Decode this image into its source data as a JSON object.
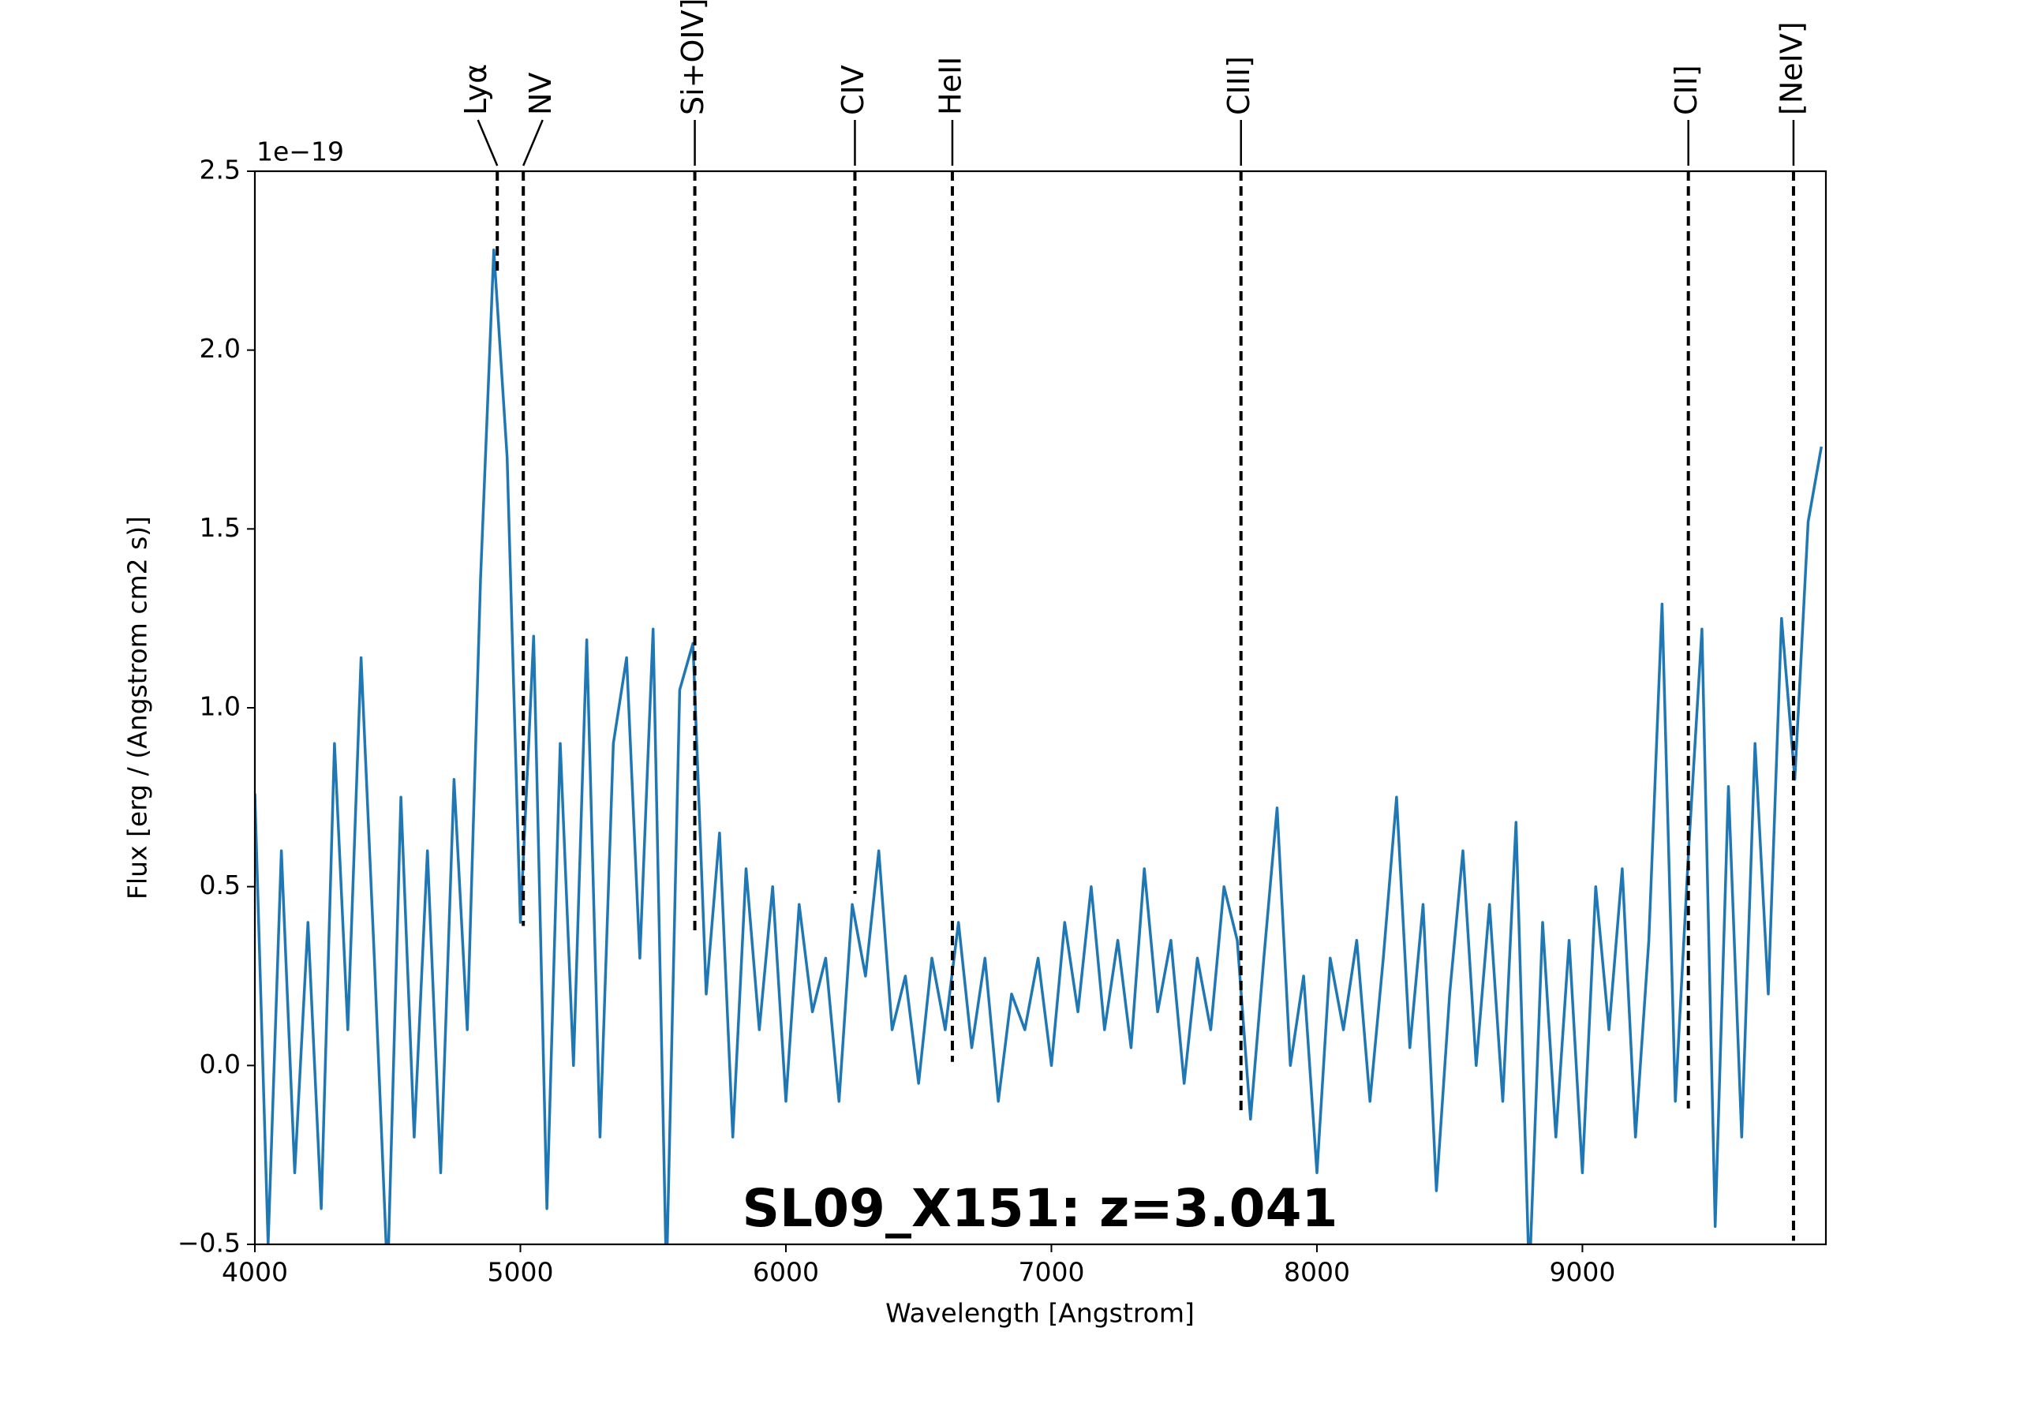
{
  "chart_data": {
    "type": "line",
    "title": "SL09_X151: z=3.041",
    "xlabel": "Wavelength [Angstrom]",
    "ylabel": "Flux [erg / (Angstrom cm2 s)]",
    "offset_text": "1e−19",
    "title_color": "#ff0000",
    "xlim": [
      4000,
      9917
    ],
    "ylim": [
      -0.5,
      2.5
    ],
    "xticks": [
      4000,
      5000,
      6000,
      7000,
      8000,
      9000
    ],
    "yticks": [
      {
        "value": -0.5,
        "label": "−0.5"
      },
      {
        "value": 0,
        "label": "0.0"
      },
      0.5,
      {
        "value": 1,
        "label": "1.0"
      },
      1.5,
      {
        "value": 2,
        "label": "2.0"
      },
      2.5
    ],
    "x": [
      4000,
      4050,
      4100,
      4150,
      4200,
      4250,
      4300,
      4350,
      4400,
      4450,
      4500,
      4550,
      4600,
      4650,
      4700,
      4750,
      4800,
      4850,
      4900,
      4950,
      5000,
      5050,
      5100,
      5150,
      5200,
      5250,
      5300,
      5350,
      5400,
      5450,
      5500,
      5550,
      5600,
      5650,
      5700,
      5750,
      5800,
      5850,
      5900,
      5950,
      6000,
      6050,
      6100,
      6150,
      6200,
      6250,
      6300,
      6350,
      6400,
      6450,
      6500,
      6550,
      6600,
      6650,
      6700,
      6750,
      6800,
      6850,
      6900,
      6950,
      7000,
      7050,
      7100,
      7150,
      7200,
      7250,
      7300,
      7350,
      7400,
      7450,
      7500,
      7550,
      7600,
      7650,
      7700,
      7750,
      7800,
      7850,
      7900,
      7950,
      8000,
      8050,
      8100,
      8150,
      8200,
      8250,
      8300,
      8350,
      8400,
      8450,
      8500,
      8550,
      8600,
      8650,
      8700,
      8750,
      8800,
      8850,
      8900,
      8950,
      9000,
      9050,
      9100,
      9150,
      9200,
      9250,
      9300,
      9350,
      9400,
      9450,
      9500,
      9550,
      9600,
      9650,
      9700,
      9750,
      9800,
      9850,
      9900
    ],
    "series": [
      {
        "color": "#1f77b4",
        "values": [
          0.76,
          -0.5,
          0.6,
          -0.3,
          0.4,
          -0.4,
          0.9,
          0.1,
          1.14,
          0.3,
          -0.6,
          0.75,
          -0.2,
          0.6,
          -0.3,
          0.8,
          0.1,
          1.36,
          2.28,
          1.7,
          0.4,
          1.2,
          -0.4,
          0.9,
          0.0,
          1.19,
          -0.2,
          0.9,
          1.14,
          0.3,
          1.22,
          -0.6,
          1.05,
          1.18,
          0.2,
          0.65,
          -0.2,
          0.55,
          0.1,
          0.5,
          -0.1,
          0.45,
          0.15,
          0.3,
          -0.1,
          0.45,
          0.25,
          0.6,
          0.1,
          0.25,
          -0.05,
          0.3,
          0.1,
          0.4,
          0.05,
          0.3,
          -0.1,
          0.2,
          0.1,
          0.3,
          0.0,
          0.4,
          0.15,
          0.5,
          0.1,
          0.35,
          0.05,
          0.55,
          0.15,
          0.35,
          -0.05,
          0.3,
          0.1,
          0.5,
          0.35,
          -0.15,
          0.3,
          0.72,
          0.0,
          0.25,
          -0.3,
          0.3,
          0.1,
          0.35,
          -0.1,
          0.3,
          0.75,
          0.05,
          0.45,
          -0.35,
          0.2,
          0.6,
          0.0,
          0.45,
          -0.1,
          0.68,
          -0.6,
          0.4,
          -0.2,
          0.35,
          -0.3,
          0.5,
          0.1,
          0.55,
          -0.2,
          0.35,
          1.29,
          -0.1,
          0.6,
          1.22,
          -0.45,
          0.78,
          -0.2,
          0.9,
          0.2,
          1.25,
          0.8,
          1.52,
          1.73
        ]
      }
    ],
    "lines": [
      {
        "label": "Lyα",
        "wavelength": 4913,
        "flux": 2.22
      },
      {
        "label": "NV",
        "wavelength": 5011,
        "flux": 0.39
      },
      {
        "label": "Si+OIV]",
        "wavelength": 5657,
        "flux": 0.37
      },
      {
        "label": "CIV",
        "wavelength": 6260,
        "flux": 0.48
      },
      {
        "label": "HeII",
        "wavelength": 6627,
        "flux": 0.01
      },
      {
        "label": "CIII]",
        "wavelength": 7714,
        "flux": -0.13
      },
      {
        "label": "CII]",
        "wavelength": 9399,
        "flux": -0.12
      },
      {
        "label": "[NeIV]",
        "wavelength": 9795,
        "flux": -0.49
      }
    ]
  }
}
